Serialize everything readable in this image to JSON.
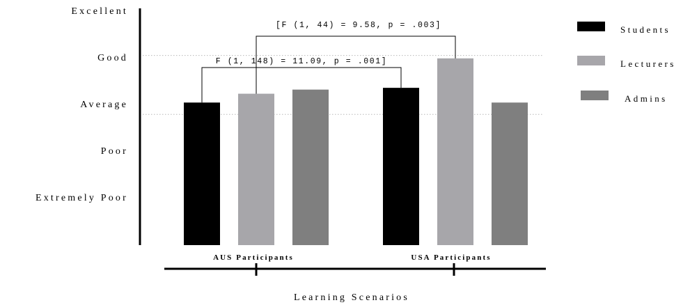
{
  "chart_data": {
    "type": "bar",
    "title": "",
    "xlabel": "Learning Scenarios",
    "ylabel": "",
    "ylim": [
      0,
      5
    ],
    "y_ticks": [
      {
        "value": 1,
        "label": "Extremely Poor"
      },
      {
        "value": 2,
        "label": "Poor"
      },
      {
        "value": 3,
        "label": "Average"
      },
      {
        "value": 4,
        "label": "Good"
      },
      {
        "value": 5,
        "label": "Excellent"
      }
    ],
    "categories": [
      "AUS Participants",
      "USA Participants"
    ],
    "series": [
      {
        "name": "Students",
        "color": "#000000",
        "values": [
          3.2,
          3.45
        ]
      },
      {
        "name": "Lecturers",
        "color": "#a7a6aa",
        "values": [
          3.35,
          3.95
        ]
      },
      {
        "name": "Admins",
        "color": "#7f7f7f",
        "values": [
          3.42,
          3.2
        ]
      }
    ],
    "reference_lines": [
      3.0,
      4.0
    ],
    "grid": false,
    "legend_position": "right",
    "annotations": [
      {
        "text": "[F (1, 44) = 9.58, p = .003]",
        "from": {
          "category": 0,
          "series": 1
        },
        "to": {
          "category": 1,
          "series": 1
        }
      },
      {
        "text": "F (1, 148) = 11.09, p = .001]",
        "from": {
          "category": 0,
          "series": 0
        },
        "to": {
          "category": 1,
          "series": 0
        }
      }
    ]
  }
}
